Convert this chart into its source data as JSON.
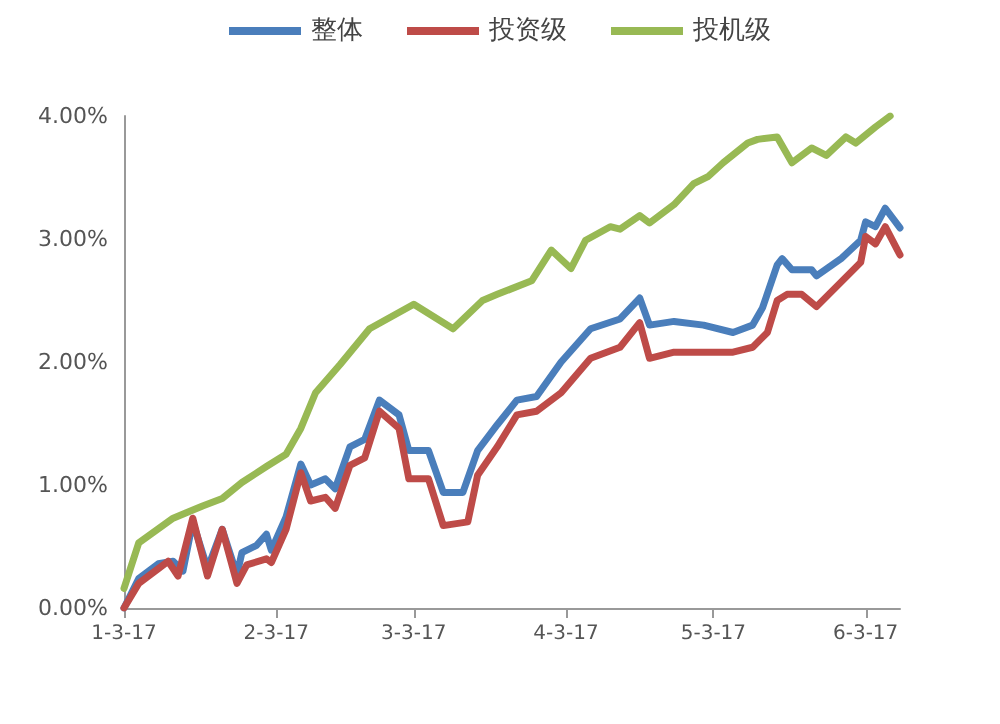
{
  "chart_data": {
    "type": "line",
    "legend": "top",
    "grid": false,
    "marker": "none",
    "line_style": "solid",
    "xlim": [
      "2017-01-03",
      "2017-06-10"
    ],
    "xticks": [
      {
        "value": "2017-01-03",
        "label": "1-3-17"
      },
      {
        "value": "2017-02-03",
        "label": "2-3-17"
      },
      {
        "value": "2017-03-03",
        "label": "3-3-17"
      },
      {
        "value": "2017-04-03",
        "label": "4-3-17"
      },
      {
        "value": "2017-05-03",
        "label": "5-3-17"
      },
      {
        "value": "2017-06-03",
        "label": "6-3-17"
      }
    ],
    "ylim": [
      0,
      4
    ],
    "yticks": [
      {
        "value": 0,
        "label": "0.00%"
      },
      {
        "value": 1,
        "label": "1.00%"
      },
      {
        "value": 2,
        "label": "2.00%"
      },
      {
        "value": 3,
        "label": "3.00%"
      },
      {
        "value": 4,
        "label": "4.00%"
      }
    ],
    "series": [
      {
        "name": "整体",
        "color": "#4a7ebb",
        "x": [
          "2017-01-03",
          "2017-01-06",
          "2017-01-10",
          "2017-01-13",
          "2017-01-15",
          "2017-01-17",
          "2017-01-20",
          "2017-01-23",
          "2017-01-26",
          "2017-01-27",
          "2017-01-30",
          "2017-02-01",
          "2017-02-02",
          "2017-02-05",
          "2017-02-08",
          "2017-02-10",
          "2017-02-13",
          "2017-02-15",
          "2017-02-18",
          "2017-02-21",
          "2017-02-24",
          "2017-02-28",
          "2017-03-02",
          "2017-03-06",
          "2017-03-09",
          "2017-03-13",
          "2017-03-16",
          "2017-03-20",
          "2017-03-24",
          "2017-03-28",
          "2017-04-02",
          "2017-04-08",
          "2017-04-14",
          "2017-04-18",
          "2017-04-20",
          "2017-04-25",
          "2017-05-01",
          "2017-05-07",
          "2017-05-11",
          "2017-05-13",
          "2017-05-16",
          "2017-05-17",
          "2017-05-19",
          "2017-05-23",
          "2017-05-24",
          "2017-05-29",
          "2017-06-02",
          "2017-06-03",
          "2017-06-05",
          "2017-06-07",
          "2017-06-10"
        ],
        "values": [
          0,
          0.24,
          0.36,
          0.38,
          0.3,
          0.7,
          0.32,
          0.64,
          0.27,
          0.45,
          0.51,
          0.6,
          0.47,
          0.74,
          1.17,
          1.0,
          1.05,
          0.97,
          1.31,
          1.37,
          1.69,
          1.57,
          1.28,
          1.28,
          0.94,
          0.94,
          1.28,
          1.49,
          1.69,
          1.72,
          2.0,
          2.27,
          2.35,
          2.52,
          2.3,
          2.33,
          2.3,
          2.24,
          2.3,
          2.44,
          2.79,
          2.84,
          2.75,
          2.75,
          2.7,
          2.84,
          2.99,
          3.14,
          3.1,
          3.25,
          3.09
        ]
      },
      {
        "name": "投资级",
        "color": "#be4b48",
        "x": [
          "2017-01-03",
          "2017-01-06",
          "2017-01-10",
          "2017-01-12",
          "2017-01-14",
          "2017-01-17",
          "2017-01-20",
          "2017-01-23",
          "2017-01-26",
          "2017-01-28",
          "2017-02-01",
          "2017-02-02",
          "2017-02-05",
          "2017-02-08",
          "2017-02-10",
          "2017-02-13",
          "2017-02-15",
          "2017-02-18",
          "2017-02-21",
          "2017-02-24",
          "2017-02-28",
          "2017-03-02",
          "2017-03-06",
          "2017-03-09",
          "2017-03-14",
          "2017-03-16",
          "2017-03-20",
          "2017-03-24",
          "2017-03-28",
          "2017-04-02",
          "2017-04-08",
          "2017-04-14",
          "2017-04-18",
          "2017-04-20",
          "2017-04-25",
          "2017-05-01",
          "2017-05-07",
          "2017-05-11",
          "2017-05-14",
          "2017-05-16",
          "2017-05-18",
          "2017-05-21",
          "2017-05-24",
          "2017-06-02",
          "2017-06-03",
          "2017-06-05",
          "2017-06-07",
          "2017-06-10"
        ],
        "values": [
          0,
          0.2,
          0.32,
          0.38,
          0.26,
          0.73,
          0.26,
          0.64,
          0.2,
          0.35,
          0.4,
          0.37,
          0.64,
          1.1,
          0.87,
          0.9,
          0.81,
          1.16,
          1.22,
          1.6,
          1.46,
          1.05,
          1.05,
          0.67,
          0.7,
          1.08,
          1.31,
          1.57,
          1.6,
          1.75,
          2.03,
          2.12,
          2.32,
          2.03,
          2.08,
          2.08,
          2.08,
          2.12,
          2.24,
          2.5,
          2.55,
          2.55,
          2.45,
          2.81,
          3.02,
          2.96,
          3.1,
          2.87
        ]
      },
      {
        "name": "投机级",
        "color": "#98b954",
        "x": [
          "2017-01-03",
          "2017-01-06",
          "2017-01-13",
          "2017-01-19",
          "2017-01-23",
          "2017-01-27",
          "2017-02-01",
          "2017-02-05",
          "2017-02-08",
          "2017-02-11",
          "2017-02-16",
          "2017-02-22",
          "2017-03-03",
          "2017-03-11",
          "2017-03-17",
          "2017-03-20",
          "2017-03-27",
          "2017-03-31",
          "2017-04-04",
          "2017-04-07",
          "2017-04-12",
          "2017-04-14",
          "2017-04-18",
          "2017-04-20",
          "2017-04-25",
          "2017-04-29",
          "2017-05-02",
          "2017-05-05",
          "2017-05-10",
          "2017-05-12",
          "2017-05-16",
          "2017-05-19",
          "2017-05-23",
          "2017-05-26",
          "2017-05-30",
          "2017-06-01",
          "2017-06-05",
          "2017-06-08"
        ],
        "values": [
          0.16,
          0.53,
          0.73,
          0.83,
          0.89,
          1.02,
          1.15,
          1.25,
          1.46,
          1.75,
          1.98,
          2.27,
          2.47,
          2.27,
          2.5,
          2.55,
          2.66,
          2.91,
          2.76,
          2.99,
          3.1,
          3.08,
          3.19,
          3.13,
          3.28,
          3.45,
          3.51,
          3.62,
          3.78,
          3.81,
          3.83,
          3.62,
          3.74,
          3.68,
          3.83,
          3.78,
          3.91,
          4.0
        ]
      }
    ]
  }
}
